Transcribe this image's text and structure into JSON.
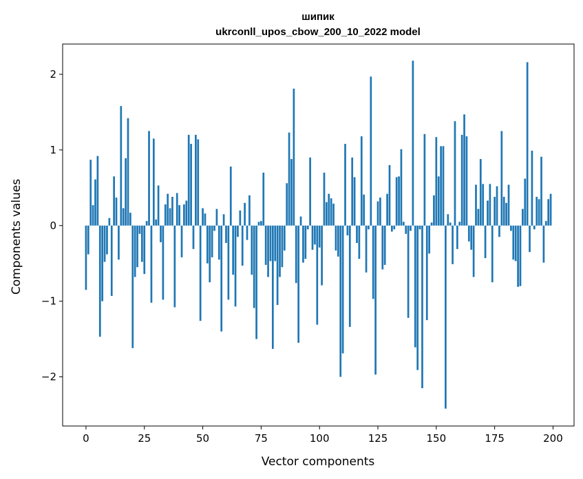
{
  "chart_data": {
    "type": "bar",
    "title_line1": "шипик",
    "title_line2": "ukrconll_upos_cbow_200_10_2022 model",
    "xlabel": "Vector components",
    "ylabel": "Components values",
    "xlim": [
      -10,
      209
    ],
    "ylim": [
      -2.65,
      2.4
    ],
    "x_ticks": [
      0,
      25,
      50,
      75,
      100,
      125,
      150,
      175,
      200
    ],
    "x_tick_labels": [
      "0",
      "25",
      "50",
      "75",
      "100",
      "125",
      "150",
      "175",
      "200"
    ],
    "y_ticks": [
      -2,
      -1,
      0,
      1,
      2
    ],
    "y_tick_labels": [
      "−2",
      "−1",
      "0",
      "1",
      "2"
    ],
    "grid": false,
    "bar_color": "#1f77b4",
    "values": [
      -0.85,
      -0.38,
      0.87,
      0.27,
      0.61,
      0.92,
      -1.47,
      -1.0,
      -0.48,
      -0.38,
      0.1,
      -0.93,
      0.65,
      0.37,
      -0.45,
      1.58,
      0.23,
      0.89,
      1.42,
      0.17,
      -1.62,
      -0.68,
      -0.55,
      -0.11,
      -0.48,
      -0.64,
      0.06,
      1.25,
      -1.02,
      1.15,
      0.08,
      0.53,
      -0.22,
      -0.98,
      0.28,
      0.42,
      0.23,
      0.38,
      -1.08,
      0.43,
      0.27,
      -0.42,
      0.28,
      0.33,
      1.2,
      1.08,
      -0.31,
      1.2,
      1.14,
      -1.26,
      0.23,
      0.16,
      -0.5,
      -0.75,
      -0.42,
      -0.07,
      0.22,
      -0.45,
      -1.4,
      0.15,
      -0.23,
      -0.98,
      0.78,
      -0.65,
      -1.07,
      -0.15,
      0.2,
      -0.53,
      0.3,
      -0.19,
      0.4,
      -0.65,
      -1.09,
      -1.5,
      0.05,
      0.06,
      0.7,
      -0.52,
      -0.68,
      -0.47,
      -1.63,
      -0.47,
      -1.05,
      -0.68,
      -0.55,
      -0.33,
      0.56,
      1.23,
      0.88,
      1.81,
      -0.76,
      -1.55,
      0.12,
      -0.49,
      -0.44,
      -0.05,
      0.9,
      -0.32,
      -0.25,
      -1.31,
      -0.29,
      -0.79,
      0.7,
      0.31,
      0.42,
      0.36,
      0.29,
      -0.33,
      -0.41,
      -2.0,
      -1.69,
      1.08,
      -0.13,
      -1.34,
      0.9,
      0.64,
      -0.23,
      -0.44,
      1.18,
      0.41,
      -0.62,
      -0.05,
      1.97,
      -0.97,
      -1.97,
      0.32,
      0.37,
      -0.58,
      -0.52,
      0.42,
      0.8,
      -0.08,
      -0.05,
      0.64,
      0.65,
      1.01,
      0.05,
      -0.11,
      -1.22,
      -0.07,
      2.18,
      -1.61,
      -1.91,
      -0.05,
      -2.15,
      1.21,
      -1.25,
      -0.37,
      0.04,
      0.4,
      1.17,
      0.65,
      1.05,
      1.05,
      -2.42,
      0.15,
      0.04,
      -0.51,
      1.38,
      -0.31,
      0.05,
      1.2,
      1.47,
      1.18,
      -0.21,
      -0.32,
      -0.68,
      0.54,
      0.22,
      0.88,
      0.55,
      -0.43,
      0.33,
      0.55,
      -0.75,
      0.38,
      0.52,
      -0.15,
      1.25,
      0.38,
      0.3,
      0.54,
      -0.07,
      -0.45,
      -0.47,
      -0.81,
      -0.8,
      0.22,
      0.62,
      2.16,
      -0.35,
      0.99,
      -0.05,
      0.38,
      0.35,
      0.91,
      -0.49,
      0.06,
      0.35,
      0.42
    ]
  }
}
